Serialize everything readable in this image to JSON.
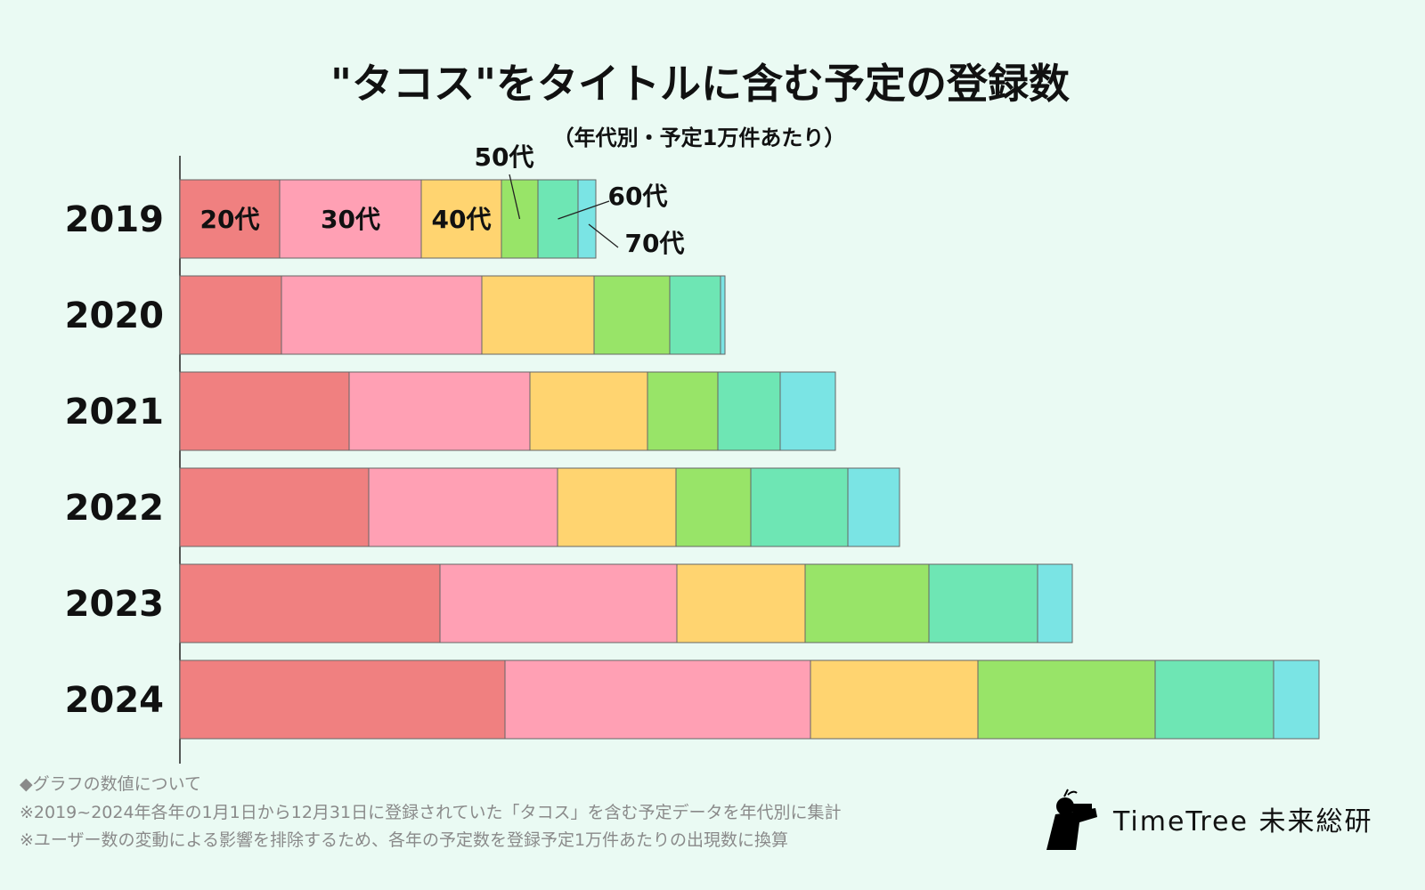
{
  "chart_data": {
    "type": "bar",
    "orientation": "horizontal",
    "stacked": true,
    "title": "\"タコス\"をタイトルに含む予定の登録数",
    "subtitle": "（年代別・予定1万件あたり）",
    "xlabel": "",
    "ylabel": "",
    "unit_note": "relative units (no numeric axis shown)",
    "xlim": [
      0,
      130
    ],
    "categories": [
      "2019",
      "2020",
      "2021",
      "2022",
      "2023",
      "2024"
    ],
    "series": [
      {
        "name": "20代",
        "color": "#f08080",
        "values": [
          11.2,
          11.4,
          19.0,
          21.2,
          29.2,
          36.5
        ]
      },
      {
        "name": "30代",
        "color": "#ffa0b4",
        "values": [
          15.9,
          22.5,
          20.3,
          21.2,
          26.6,
          34.3
        ]
      },
      {
        "name": "40代",
        "color": "#ffd470",
        "values": [
          9.0,
          12.6,
          13.2,
          13.3,
          14.4,
          18.8
        ]
      },
      {
        "name": "50代",
        "color": "#98e468",
        "values": [
          4.1,
          8.5,
          7.9,
          8.4,
          13.9,
          19.9
        ]
      },
      {
        "name": "60代",
        "color": "#6ee6b4",
        "values": [
          4.5,
          5.7,
          7.0,
          10.9,
          12.2,
          13.3
        ]
      },
      {
        "name": "70代",
        "color": "#7ae4e4",
        "values": [
          2.0,
          0.5,
          6.2,
          5.8,
          3.9,
          5.1
        ]
      }
    ],
    "legend": "inline labels on 2019 bar",
    "grid": false
  },
  "notes": {
    "heading": "◆グラフの数値について",
    "line1": "※2019~2024年各年の1月1日から12月31日に登録されていた「タコス」を含む予定データを年代別に集計",
    "line2": "※ユーザー数の変動による影響を排除するため、各年の予定数を登録予定1万件あたりの出現数に換算"
  },
  "brand": {
    "name": "TimeTree 未来総研",
    "icon": "person-with-binoculars-logo"
  }
}
